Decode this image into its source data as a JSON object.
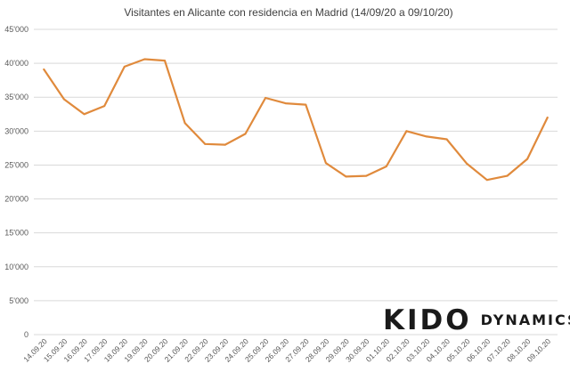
{
  "chart_data": {
    "type": "line",
    "title": "Visitantes en Alicante con residencia en Madrid (14/09/20 a 09/10/20)",
    "xlabel": "",
    "ylabel": "",
    "ylim": [
      0,
      45000
    ],
    "yticks": [
      0,
      5000,
      10000,
      15000,
      20000,
      25000,
      30000,
      35000,
      40000,
      45000
    ],
    "ytick_labels": [
      "0",
      "5'000",
      "10'000",
      "15'000",
      "20'000",
      "25'000",
      "30'000",
      "35'000",
      "40'000",
      "45'000"
    ],
    "grid": true,
    "legend": "none",
    "categories": [
      "14.09.20",
      "15.09.20",
      "16.09.20",
      "17.09.20",
      "18.09.20",
      "19.09.20",
      "20.09.20",
      "21.09.20",
      "22.09.20",
      "23.09.20",
      "24.09.20",
      "25.09.20",
      "26.09.20",
      "27.09.20",
      "28.09.20",
      "29.09.20",
      "30.09.20",
      "01.10.20",
      "02.10.20",
      "03.10.20",
      "04.10.20",
      "05.10.20",
      "06.10.20",
      "07.10.20",
      "08.10.20",
      "09.10.20"
    ],
    "series": [
      {
        "values": [
          39100,
          34700,
          32500,
          33700,
          39500,
          40600,
          40400,
          31200,
          28100,
          28000,
          29600,
          34900,
          34100,
          33900,
          25300,
          23300,
          23400,
          24800,
          30000,
          29200,
          28800,
          25200,
          22800,
          23400,
          25900,
          32000
        ],
        "color": "#e08a3c"
      }
    ]
  },
  "logo": {
    "mark": "KIDO",
    "word": "DYNAMICS"
  }
}
